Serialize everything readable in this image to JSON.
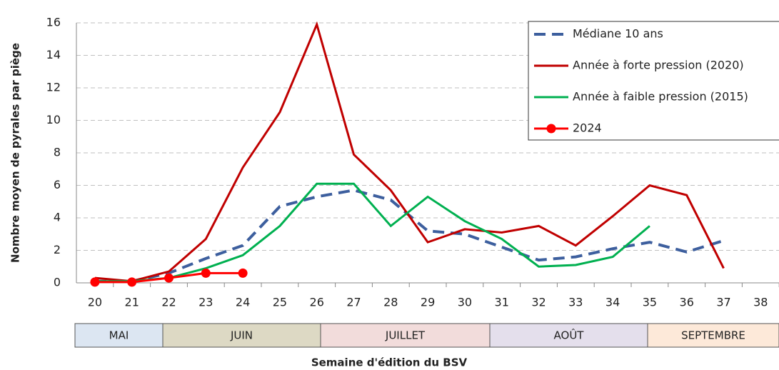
{
  "chart_data": {
    "type": "line",
    "x_label": "Semaine d'édition du BSV",
    "y_label": "Nombre moyen de pyrales par piège",
    "categories": [
      "20",
      "21",
      "22",
      "23",
      "24",
      "25",
      "26",
      "27",
      "28",
      "29",
      "30",
      "31",
      "32",
      "33",
      "34",
      "35",
      "36",
      "37",
      "38"
    ],
    "months": [
      {
        "name": "MAI",
        "color": "#dce6f2"
      },
      {
        "name": "JUIN",
        "color": "#ddd9c4"
      },
      {
        "name": "JUILLET",
        "color": "#f2dcdb"
      },
      {
        "name": "AOÛT",
        "color": "#e4dfec"
      },
      {
        "name": "SEPTEMBRE",
        "color": "#fde9d9"
      }
    ],
    "ylim": [
      0,
      16
    ],
    "yticks": [
      0,
      2,
      4,
      6,
      8,
      10,
      12,
      14,
      16
    ],
    "grid": true,
    "legend": "upper right",
    "series": [
      {
        "name": "Médiane 10 ans",
        "color": "#3d5f9e",
        "dashed": true,
        "values": [
          0.1,
          0.1,
          0.6,
          1.5,
          2.3,
          4.7,
          5.3,
          5.7,
          5.1,
          3.2,
          3.0,
          2.2,
          1.4,
          1.6,
          2.1,
          2.5,
          1.9,
          2.6,
          null
        ]
      },
      {
        "name": "Année à forte pression (2020)",
        "color": "#c00000",
        "values": [
          0.3,
          0.1,
          0.7,
          2.7,
          7.1,
          10.5,
          15.9,
          7.9,
          5.7,
          2.5,
          3.3,
          3.1,
          3.5,
          2.3,
          4.1,
          6.0,
          5.4,
          0.9,
          null
        ]
      },
      {
        "name": "Année à faible pression (2015)",
        "color": "#00b050",
        "values": [
          0.1,
          0.1,
          0.3,
          0.9,
          1.7,
          3.5,
          6.1,
          6.1,
          3.5,
          5.3,
          3.8,
          2.7,
          1.0,
          1.1,
          1.6,
          3.5,
          null,
          null,
          null
        ]
      },
      {
        "name": "2024",
        "color": "#ff0000",
        "markers": true,
        "values": [
          0.05,
          0.05,
          0.3,
          0.6,
          0.6,
          null,
          null,
          null,
          null,
          null,
          null,
          null,
          null,
          null,
          null,
          null,
          null,
          null,
          null
        ]
      }
    ]
  }
}
